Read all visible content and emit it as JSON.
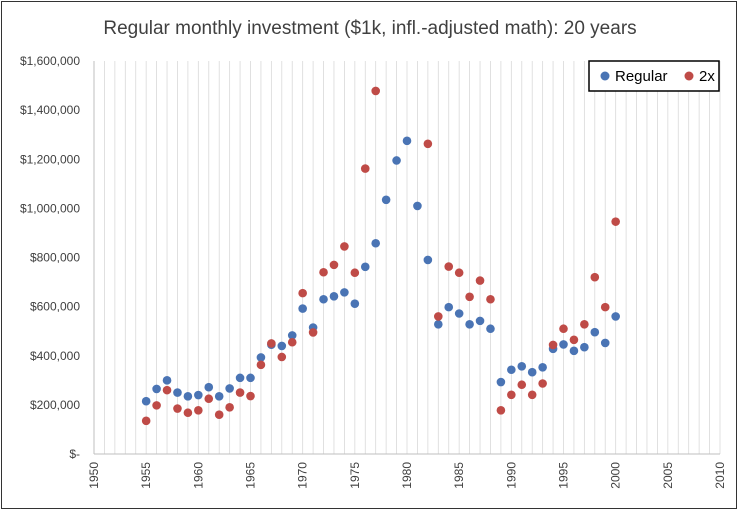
{
  "chart_data": {
    "type": "scatter",
    "title": "Regular monthly investment ($1k, infl.-adjusted math): 20 years",
    "xlabel": "",
    "ylabel": "",
    "xlim": [
      1950,
      2010
    ],
    "ylim": [
      0,
      1600000
    ],
    "x_ticks": [
      "1950",
      "1955",
      "1960",
      "1965",
      "1970",
      "1975",
      "1980",
      "1985",
      "1990",
      "1995",
      "2000",
      "2005",
      "2010"
    ],
    "y_ticks": [
      "$-",
      "$200,000",
      "$400,000",
      "$600,000",
      "$800,000",
      "$1,000,000",
      "$1,200,000",
      "$1,400,000",
      "$1,600,000"
    ],
    "grid": "vertical minor gridlines every year",
    "legend_position": "top-right",
    "series": [
      {
        "name": "Regular",
        "color": "#4a74b4",
        "points": [
          [
            1955,
            215000
          ],
          [
            1956,
            265000
          ],
          [
            1957,
            300000
          ],
          [
            1958,
            250000
          ],
          [
            1959,
            235000
          ],
          [
            1960,
            240000
          ],
          [
            1961,
            272000
          ],
          [
            1962,
            235000
          ],
          [
            1963,
            267000
          ],
          [
            1964,
            310000
          ],
          [
            1965,
            310000
          ],
          [
            1966,
            393000
          ],
          [
            1967,
            445000
          ],
          [
            1968,
            440000
          ],
          [
            1969,
            483000
          ],
          [
            1970,
            592000
          ],
          [
            1971,
            515000
          ],
          [
            1972,
            630000
          ],
          [
            1973,
            642000
          ],
          [
            1974,
            658000
          ],
          [
            1975,
            612000
          ],
          [
            1976,
            762000
          ],
          [
            1977,
            858000
          ],
          [
            1978,
            1035000
          ],
          [
            1979,
            1195000
          ],
          [
            1980,
            1275000
          ],
          [
            1981,
            1010000
          ],
          [
            1982,
            790000
          ],
          [
            1983,
            528000
          ],
          [
            1984,
            598000
          ],
          [
            1985,
            572000
          ],
          [
            1986,
            528000
          ],
          [
            1987,
            542000
          ],
          [
            1988,
            510000
          ],
          [
            1989,
            293000
          ],
          [
            1990,
            343000
          ],
          [
            1991,
            357000
          ],
          [
            1992,
            333000
          ],
          [
            1993,
            353000
          ],
          [
            1994,
            428000
          ],
          [
            1995,
            446000
          ],
          [
            1996,
            420000
          ],
          [
            1997,
            435000
          ],
          [
            1998,
            496000
          ],
          [
            1999,
            452000
          ],
          [
            2000,
            560000
          ]
        ]
      },
      {
        "name": "2x",
        "color": "#bf4b47",
        "points": [
          [
            1955,
            135000
          ],
          [
            1956,
            198000
          ],
          [
            1957,
            260000
          ],
          [
            1958,
            185000
          ],
          [
            1959,
            168000
          ],
          [
            1960,
            178000
          ],
          [
            1961,
            225000
          ],
          [
            1962,
            160000
          ],
          [
            1963,
            190000
          ],
          [
            1964,
            250000
          ],
          [
            1965,
            236000
          ],
          [
            1966,
            363000
          ],
          [
            1967,
            450000
          ],
          [
            1968,
            395000
          ],
          [
            1969,
            455000
          ],
          [
            1970,
            655000
          ],
          [
            1971,
            495000
          ],
          [
            1972,
            740000
          ],
          [
            1973,
            770000
          ],
          [
            1974,
            845000
          ],
          [
            1975,
            738000
          ],
          [
            1976,
            1162000
          ],
          [
            1977,
            1478000
          ],
          [
            1982,
            1263000
          ],
          [
            1983,
            560000
          ],
          [
            1984,
            763000
          ],
          [
            1985,
            738000
          ],
          [
            1986,
            640000
          ],
          [
            1987,
            706000
          ],
          [
            1988,
            630000
          ],
          [
            1989,
            178000
          ],
          [
            1990,
            241000
          ],
          [
            1991,
            282000
          ],
          [
            1992,
            241000
          ],
          [
            1993,
            287000
          ],
          [
            1994,
            444000
          ],
          [
            1995,
            510000
          ],
          [
            1996,
            465000
          ],
          [
            1997,
            528000
          ],
          [
            1998,
            720000
          ],
          [
            1999,
            598000
          ],
          [
            2000,
            946000
          ]
        ]
      }
    ]
  }
}
